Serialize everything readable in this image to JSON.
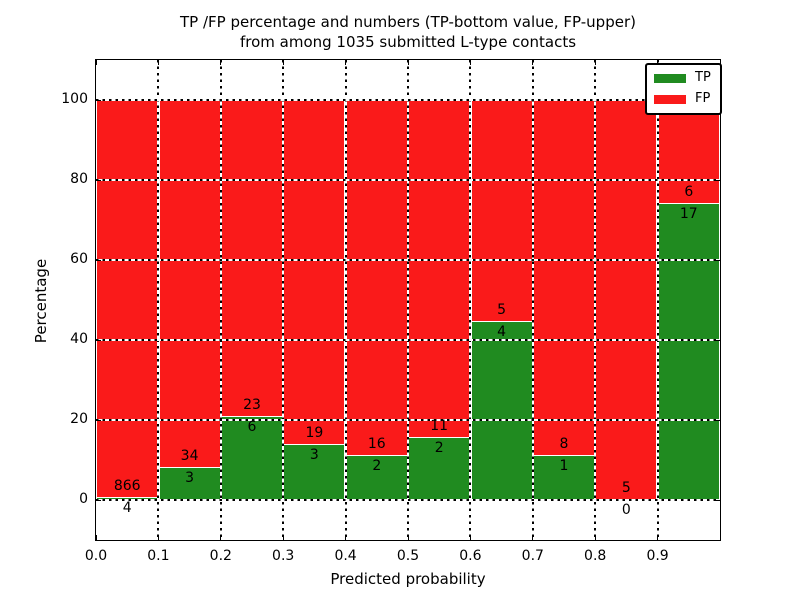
{
  "title": {
    "line1": "TP /FP percentage and numbers (TP-bottom value, FP-upper)",
    "line2": "from among 1035 submitted L-type contacts"
  },
  "chart_data": {
    "type": "bar",
    "stacked": true,
    "normalized_to": 100,
    "title": "TP /FP percentage and numbers (TP-bottom value, FP-upper) from among 1035 submitted L-type contacts",
    "xlabel": "Predicted probability",
    "ylabel": "Percentage",
    "xlim": [
      0.0,
      1.0
    ],
    "ylim": [
      -10,
      110
    ],
    "bin_width": 0.1,
    "bin_ranges": [
      "0.0-0.1",
      "0.1-0.2",
      "0.2-0.3",
      "0.3-0.4",
      "0.4-0.5",
      "0.5-0.6",
      "0.6-0.7",
      "0.7-0.8",
      "0.8-0.9",
      "0.9-1.0"
    ],
    "x_tick_labels": [
      "0.0",
      "0.1",
      "0.2",
      "0.3",
      "0.4",
      "0.5",
      "0.6",
      "0.7",
      "0.8",
      "0.9"
    ],
    "y_tick_values": [
      0,
      20,
      40,
      60,
      80,
      100
    ],
    "y_tick_labels": [
      "0",
      "20",
      "40",
      "60",
      "80",
      "100"
    ],
    "grid": true,
    "legend": {
      "position": "upper right"
    },
    "series": [
      {
        "name": "TP",
        "color": "#208b20",
        "counts": [
          4,
          3,
          6,
          3,
          2,
          2,
          4,
          1,
          0,
          17
        ]
      },
      {
        "name": "FP",
        "color": "#fa1a1a",
        "counts": [
          866,
          34,
          23,
          19,
          16,
          11,
          5,
          8,
          5,
          6
        ]
      }
    ],
    "tp_percent_per_bin": [
      0.46,
      8.11,
      20.69,
      13.64,
      11.11,
      15.38,
      44.44,
      11.11,
      0.0,
      73.91
    ],
    "total_contacts": 1035
  },
  "colors": {
    "tp": "#208b20",
    "fp": "#fa1a1a",
    "frame": "#000000",
    "background": "#ffffff"
  }
}
